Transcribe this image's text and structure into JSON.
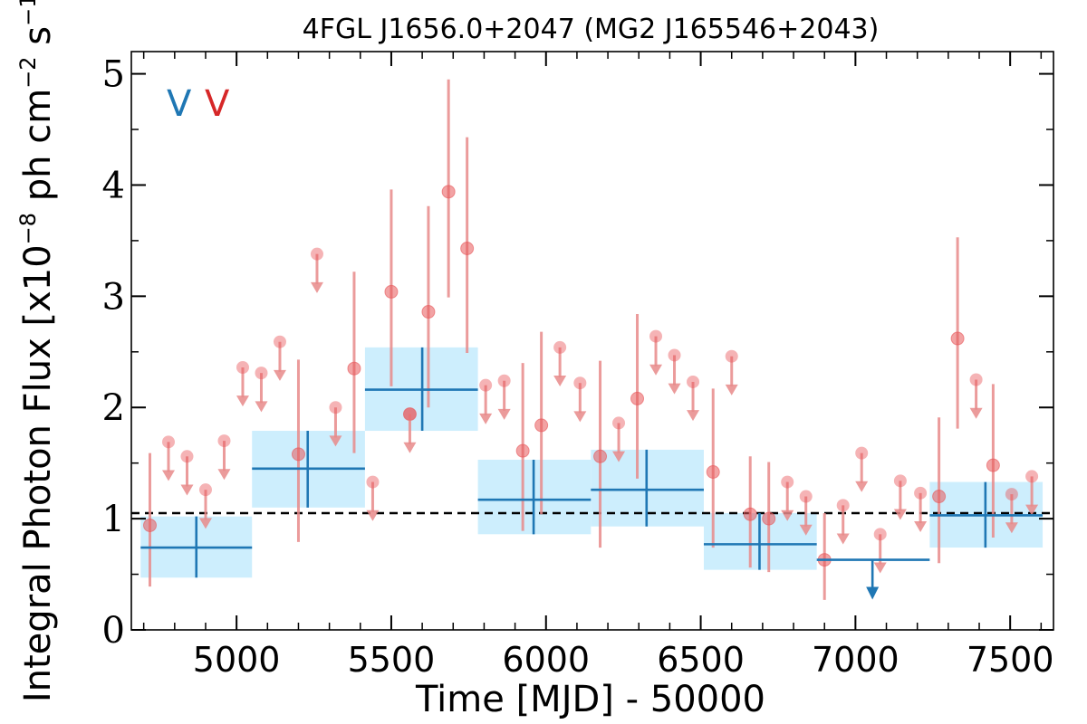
{
  "chart_data": {
    "type": "scatter",
    "title": "4FGL J1656.0+2047 (MG2 J165546+2043)",
    "xlabel": "Time [MJD] - 50000",
    "ylabel": "Integral Photon Flux [x10$^{-8}$ ph cm$^{-2}$ s$^{-1}$]",
    "ylabel_parts": {
      "main": "Integral Photon Flux [x10",
      "exp1": "−8",
      "mid": " ph cm",
      "exp2": "−2",
      "mid2": " s",
      "exp3": "−1",
      "end": "]"
    },
    "xlim": [
      4660,
      7640
    ],
    "ylim": [
      0,
      5.2
    ],
    "x_ticks": [
      5000,
      5500,
      6000,
      6500,
      7000,
      7500
    ],
    "x_tick_labels": [
      "5000",
      "5500",
      "6000",
      "6500",
      "7000",
      "7500"
    ],
    "y_ticks": [
      0,
      1,
      2,
      3,
      4,
      5
    ],
    "y_tick_labels": [
      "0",
      "1",
      "2",
      "3",
      "4",
      "5"
    ],
    "mean_flux": 1.05,
    "legend": {
      "placement": "top-left",
      "entries": [
        {
          "label": "V",
          "color": "#1f77b4"
        },
        {
          "label": "V",
          "color": "#d62728"
        }
      ]
    },
    "colors": {
      "long_bin": "#1f77b4",
      "long_band": "#cdeefd",
      "short_bin": "#e88a8a",
      "short_point": "#e8575a",
      "mean_line": "#000000"
    },
    "series": [
      {
        "color": "#1f77b4",
        "detections": [
          {
            "x": 4870,
            "x_lo": 4690,
            "x_hi": 5050,
            "y": 0.74,
            "y_lo": 0.47,
            "y_hi": 1.02
          },
          {
            "x": 5230,
            "x_lo": 5050,
            "x_hi": 5415,
            "y": 1.45,
            "y_lo": 1.1,
            "y_hi": 1.79
          },
          {
            "x": 5600,
            "x_lo": 5415,
            "x_hi": 5780,
            "y": 2.16,
            "y_lo": 1.79,
            "y_hi": 2.54
          },
          {
            "x": 5960,
            "x_lo": 5780,
            "x_hi": 6145,
            "y": 1.17,
            "y_lo": 0.86,
            "y_hi": 1.53
          },
          {
            "x": 6325,
            "x_lo": 6145,
            "x_hi": 6510,
            "y": 1.26,
            "y_lo": 0.93,
            "y_hi": 1.62
          },
          {
            "x": 6690,
            "x_lo": 6510,
            "x_hi": 6875,
            "y": 0.77,
            "y_lo": 0.54,
            "y_hi": 1.05
          },
          {
            "x": 7420,
            "x_lo": 7240,
            "x_hi": 7605,
            "y": 1.03,
            "y_lo": 0.74,
            "y_hi": 1.33
          }
        ],
        "upper_limits": [
          {
            "x": 7055,
            "x_lo": 6875,
            "x_hi": 7240,
            "y": 0.63
          }
        ]
      },
      {
        "color": "#e88a8a",
        "detections": [
          {
            "x": 4720,
            "y": 0.94,
            "y_lo": 0.39,
            "y_hi": 1.59
          },
          {
            "x": 5200,
            "y": 1.58,
            "y_lo": 0.79,
            "y_hi": 2.43
          },
          {
            "x": 5380,
            "y": 2.35,
            "y_lo": 1.59,
            "y_hi": 3.22
          },
          {
            "x": 5500,
            "y": 3.04,
            "y_lo": 2.19,
            "y_hi": 3.96
          },
          {
            "x": 5560,
            "y": 1.94,
            "y_lo": 1.94,
            "y_hi": 1.94
          },
          {
            "x": 5620,
            "y": 2.86,
            "y_lo": 2.0,
            "y_hi": 3.81
          },
          {
            "x": 5685,
            "y": 3.94,
            "y_lo": 2.99,
            "y_hi": 4.95
          },
          {
            "x": 5745,
            "y": 3.43,
            "y_lo": 2.49,
            "y_hi": 4.43
          },
          {
            "x": 5925,
            "y": 1.61,
            "y_lo": 0.89,
            "y_hi": 2.4
          },
          {
            "x": 5985,
            "y": 1.84,
            "y_lo": 1.04,
            "y_hi": 2.68
          },
          {
            "x": 6175,
            "y": 1.56,
            "y_lo": 0.74,
            "y_hi": 2.42
          },
          {
            "x": 6295,
            "y": 2.08,
            "y_lo": 1.36,
            "y_hi": 2.84
          },
          {
            "x": 6540,
            "y": 1.42,
            "y_lo": 0.74,
            "y_hi": 2.17
          },
          {
            "x": 6660,
            "y": 1.04,
            "y_lo": 0.56,
            "y_hi": 1.56
          },
          {
            "x": 6720,
            "y": 1.0,
            "y_lo": 0.52,
            "y_hi": 1.51
          },
          {
            "x": 6900,
            "y": 0.63,
            "y_lo": 0.27,
            "y_hi": 1.05
          },
          {
            "x": 7270,
            "y": 1.2,
            "y_lo": 0.6,
            "y_hi": 1.91
          },
          {
            "x": 7330,
            "y": 2.62,
            "y_lo": 1.81,
            "y_hi": 3.53
          },
          {
            "x": 7445,
            "y": 1.48,
            "y_lo": 0.83,
            "y_hi": 2.21
          }
        ],
        "upper_limits": [
          {
            "x": 4780,
            "y": 1.69
          },
          {
            "x": 4840,
            "y": 1.56
          },
          {
            "x": 4900,
            "y": 1.26
          },
          {
            "x": 4960,
            "y": 1.7
          },
          {
            "x": 5020,
            "y": 2.36
          },
          {
            "x": 5080,
            "y": 2.31
          },
          {
            "x": 5140,
            "y": 2.59
          },
          {
            "x": 5260,
            "y": 3.38
          },
          {
            "x": 5320,
            "y": 2.0
          },
          {
            "x": 5440,
            "y": 1.33
          },
          {
            "x": 5560,
            "y": 1.94
          },
          {
            "x": 5805,
            "y": 2.2
          },
          {
            "x": 5865,
            "y": 2.24
          },
          {
            "x": 6045,
            "y": 2.54
          },
          {
            "x": 6110,
            "y": 2.22
          },
          {
            "x": 6235,
            "y": 1.86
          },
          {
            "x": 6355,
            "y": 2.64
          },
          {
            "x": 6415,
            "y": 2.47
          },
          {
            "x": 6475,
            "y": 2.23
          },
          {
            "x": 6600,
            "y": 2.46
          },
          {
            "x": 6780,
            "y": 1.33
          },
          {
            "x": 6840,
            "y": 1.2
          },
          {
            "x": 6960,
            "y": 1.12
          },
          {
            "x": 7020,
            "y": 1.59
          },
          {
            "x": 7080,
            "y": 0.86
          },
          {
            "x": 7145,
            "y": 1.34
          },
          {
            "x": 7210,
            "y": 1.23
          },
          {
            "x": 7390,
            "y": 2.25
          },
          {
            "x": 7505,
            "y": 1.22
          },
          {
            "x": 7570,
            "y": 1.38
          }
        ]
      }
    ]
  }
}
